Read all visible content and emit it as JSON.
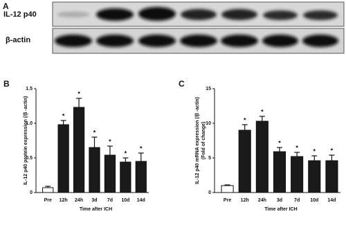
{
  "blot": {
    "label": "A",
    "rows": [
      "IL-12 p40",
      "β-actin"
    ]
  },
  "chart_data": [
    {
      "type": "bar",
      "label": "B",
      "ylabel": [
        "IL-12 p40 protein expression (/β -actin)"
      ],
      "xlabel": "Time after ICH",
      "categories": [
        "Pre",
        "12h",
        "24h",
        "3d",
        "7d",
        "10d",
        "14d"
      ],
      "values": [
        0.07,
        0.98,
        1.23,
        0.65,
        0.54,
        0.44,
        0.45
      ],
      "errors": [
        0.02,
        0.06,
        0.13,
        0.15,
        0.13,
        0.06,
        0.12
      ],
      "annotations": [
        null,
        "*",
        "*",
        "*",
        "*",
        "*",
        "*"
      ],
      "colors": [
        "#ffffff",
        "#1a1a1a",
        "#1a1a1a",
        "#1a1a1a",
        "#1a1a1a",
        "#1a1a1a",
        "#1a1a1a"
      ],
      "ylim": [
        0,
        1.5
      ],
      "yticks": [
        0,
        0.5,
        {
          "value": 1,
          "label": "1.0"
        },
        1.5
      ]
    },
    {
      "type": "bar",
      "label": "C",
      "ylabel": [
        "IL-12 p40 mRNA expression (/β -actin)",
        "(Fold of change)"
      ],
      "xlabel": "Time after ICH",
      "categories": [
        "Pre",
        "12h",
        "24h",
        "3d",
        "7d",
        "10d",
        "14d"
      ],
      "values": [
        1.0,
        9.0,
        10.3,
        5.9,
        5.2,
        4.6,
        4.6
      ],
      "errors": [
        0.1,
        0.8,
        0.7,
        0.6,
        0.6,
        0.7,
        0.8
      ],
      "annotations": [
        null,
        "*",
        "*",
        "*",
        "*",
        "*",
        "*"
      ],
      "colors": [
        "#ffffff",
        "#1a1a1a",
        "#1a1a1a",
        "#1a1a1a",
        "#1a1a1a",
        "#1a1a1a",
        "#1a1a1a"
      ],
      "ylim": [
        0,
        15
      ],
      "yticks": [
        0,
        5,
        10,
        15
      ]
    }
  ]
}
